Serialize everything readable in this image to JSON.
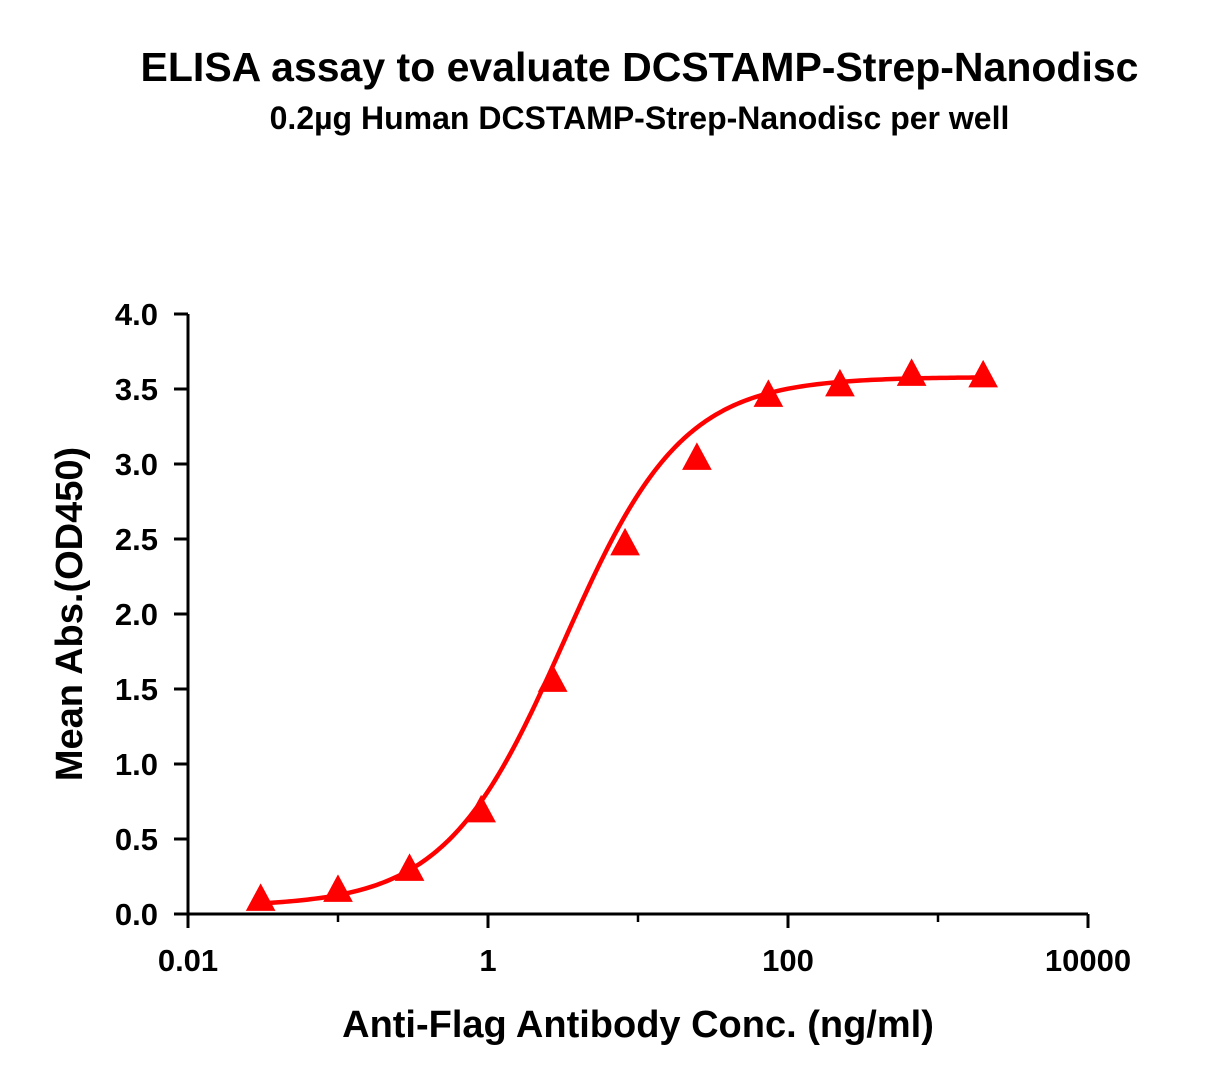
{
  "chart_data": {
    "type": "scatter",
    "title": "ELISA assay to evaluate DCSTAMP-Strep-Nanodisc",
    "subtitle": "0.2µg Human DCSTAMP-Strep-Nanodisc per well",
    "xlabel": "Anti-Flag Antibody Conc. (ng/ml)",
    "ylabel": "Mean Abs.(OD450)",
    "x_scale": "log",
    "xlim": [
      0.01,
      10000
    ],
    "ylim": [
      0,
      4.0
    ],
    "x_ticks": [
      {
        "value": 0.01,
        "label": "0.01"
      },
      {
        "value": 1,
        "label": "1"
      },
      {
        "value": 100,
        "label": "100"
      },
      {
        "value": 10000,
        "label": "10000"
      }
    ],
    "y_ticks": [
      {
        "value": 0.0,
        "label": "0.0"
      },
      {
        "value": 0.5,
        "label": "0.5"
      },
      {
        "value": 1.0,
        "label": "1.0"
      },
      {
        "value": 1.5,
        "label": "1.5"
      },
      {
        "value": 2.0,
        "label": "2.0"
      },
      {
        "value": 2.5,
        "label": "2.5"
      },
      {
        "value": 3.0,
        "label": "3.0"
      },
      {
        "value": 3.5,
        "label": "3.5"
      },
      {
        "value": 4.0,
        "label": "4.0"
      }
    ],
    "grid": false,
    "legend": "none",
    "series_color": "#ff0000",
    "marker": "triangle",
    "fit": "4-parameter logistic curve",
    "series": [
      {
        "x": [
          0.0305,
          0.1,
          0.3,
          0.9,
          2.7,
          8.2,
          24.7,
          74,
          222,
          667,
          2000
        ],
        "y": [
          0.09,
          0.15,
          0.29,
          0.68,
          1.55,
          2.46,
          3.03,
          3.45,
          3.52,
          3.59,
          3.58
        ]
      }
    ],
    "fit_params": {
      "bottom": 0.05,
      "top": 3.58,
      "ec50": 3.2,
      "hill": 1.1
    }
  }
}
